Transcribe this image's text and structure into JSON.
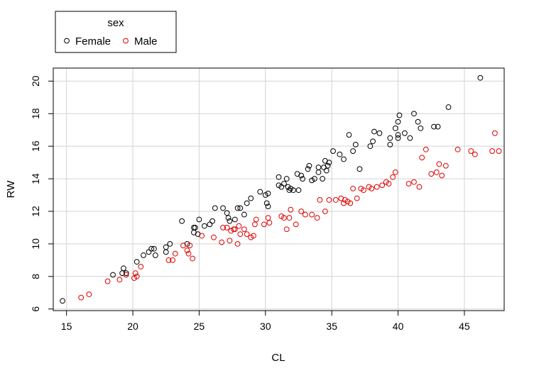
{
  "chart_data": {
    "type": "scatter",
    "xlabel": "CL",
    "ylabel": "RW",
    "xlim": [
      14,
      48
    ],
    "ylim": [
      5.9,
      20.8
    ],
    "grid": true,
    "x_ticks": [
      15,
      20,
      25,
      30,
      35,
      40,
      45
    ],
    "y_ticks": [
      6,
      8,
      10,
      12,
      14,
      16,
      18,
      20
    ],
    "legend": {
      "title": "sex",
      "position": "top-left, outside plot",
      "entries": [
        "Female",
        "Male"
      ]
    },
    "series": [
      {
        "name": "Female",
        "color": "#000000",
        "marker": "open-circle",
        "points": [
          [
            14.7,
            6.5
          ],
          [
            18.5,
            8.1
          ],
          [
            19.2,
            8.2
          ],
          [
            19.3,
            8.5
          ],
          [
            19.5,
            8.2
          ],
          [
            20.3,
            8.9
          ],
          [
            20.8,
            9.3
          ],
          [
            21.2,
            9.5
          ],
          [
            21.4,
            9.7
          ],
          [
            21.6,
            9.7
          ],
          [
            21.7,
            9.3
          ],
          [
            22.5,
            9.5
          ],
          [
            22.5,
            9.8
          ],
          [
            22.8,
            10.0
          ],
          [
            23.7,
            11.4
          ],
          [
            24.1,
            10.0
          ],
          [
            24.6,
            10.7
          ],
          [
            24.6,
            11.0
          ],
          [
            24.7,
            11.0
          ],
          [
            24.9,
            10.6
          ],
          [
            25.0,
            11.5
          ],
          [
            25.4,
            11.1
          ],
          [
            25.8,
            11.2
          ],
          [
            26.0,
            11.4
          ],
          [
            26.2,
            12.2
          ],
          [
            26.8,
            12.2
          ],
          [
            27.1,
            11.9
          ],
          [
            27.2,
            11.6
          ],
          [
            27.3,
            11.4
          ],
          [
            27.7,
            11.5
          ],
          [
            27.9,
            12.2
          ],
          [
            28.1,
            12.2
          ],
          [
            28.4,
            11.8
          ],
          [
            28.6,
            12.5
          ],
          [
            28.9,
            12.8
          ],
          [
            29.6,
            13.2
          ],
          [
            30.0,
            13.0
          ],
          [
            30.1,
            12.5
          ],
          [
            30.2,
            12.3
          ],
          [
            30.2,
            13.1
          ],
          [
            31.0,
            13.6
          ],
          [
            31.0,
            14.1
          ],
          [
            31.2,
            13.5
          ],
          [
            31.4,
            13.7
          ],
          [
            31.6,
            14.0
          ],
          [
            31.7,
            13.5
          ],
          [
            31.8,
            13.3
          ],
          [
            31.9,
            13.4
          ],
          [
            32.1,
            13.3
          ],
          [
            32.4,
            14.3
          ],
          [
            32.5,
            13.3
          ],
          [
            32.7,
            14.2
          ],
          [
            32.8,
            14.0
          ],
          [
            33.2,
            14.6
          ],
          [
            33.3,
            14.8
          ],
          [
            33.5,
            13.9
          ],
          [
            33.7,
            14.0
          ],
          [
            34.0,
            14.4
          ],
          [
            34.0,
            14.7
          ],
          [
            34.3,
            14.0
          ],
          [
            34.4,
            14.7
          ],
          [
            34.5,
            15.1
          ],
          [
            34.6,
            14.5
          ],
          [
            34.7,
            14.8
          ],
          [
            34.8,
            15.0
          ],
          [
            35.1,
            15.7
          ],
          [
            35.6,
            15.5
          ],
          [
            35.9,
            15.2
          ],
          [
            36.3,
            16.7
          ],
          [
            36.6,
            15.7
          ],
          [
            36.8,
            16.1
          ],
          [
            37.1,
            14.6
          ],
          [
            37.9,
            16.0
          ],
          [
            38.1,
            16.3
          ],
          [
            38.2,
            16.9
          ],
          [
            38.6,
            16.8
          ],
          [
            39.4,
            16.1
          ],
          [
            39.4,
            16.5
          ],
          [
            39.8,
            17.1
          ],
          [
            40.0,
            16.5
          ],
          [
            40.0,
            16.7
          ],
          [
            40.0,
            17.5
          ],
          [
            40.1,
            17.9
          ],
          [
            40.5,
            16.8
          ],
          [
            40.9,
            16.5
          ],
          [
            41.2,
            18.0
          ],
          [
            41.5,
            17.5
          ],
          [
            41.7,
            17.1
          ],
          [
            42.7,
            17.2
          ],
          [
            43.0,
            17.2
          ],
          [
            43.8,
            18.4
          ],
          [
            46.2,
            20.2
          ]
        ]
      },
      {
        "name": "Male",
        "color": "#df0000",
        "marker": "open-circle",
        "points": [
          [
            16.1,
            6.7
          ],
          [
            16.7,
            6.9
          ],
          [
            18.1,
            7.7
          ],
          [
            19.0,
            7.8
          ],
          [
            19.5,
            8.1
          ],
          [
            20.1,
            7.9
          ],
          [
            20.2,
            8.2
          ],
          [
            20.3,
            8.0
          ],
          [
            20.6,
            8.6
          ],
          [
            22.7,
            9.0
          ],
          [
            23.0,
            9.0
          ],
          [
            23.2,
            9.4
          ],
          [
            23.8,
            9.9
          ],
          [
            24.1,
            9.6
          ],
          [
            24.2,
            9.4
          ],
          [
            24.3,
            9.9
          ],
          [
            24.5,
            9.1
          ],
          [
            25.2,
            10.5
          ],
          [
            26.1,
            10.4
          ],
          [
            26.7,
            10.1
          ],
          [
            26.8,
            11.0
          ],
          [
            27.1,
            11.0
          ],
          [
            27.3,
            10.2
          ],
          [
            27.4,
            10.8
          ],
          [
            27.6,
            10.9
          ],
          [
            27.7,
            10.9
          ],
          [
            27.9,
            10.0
          ],
          [
            28.0,
            11.1
          ],
          [
            28.1,
            10.6
          ],
          [
            28.4,
            10.9
          ],
          [
            28.6,
            10.6
          ],
          [
            28.9,
            10.4
          ],
          [
            29.1,
            10.5
          ],
          [
            29.2,
            11.2
          ],
          [
            29.3,
            11.5
          ],
          [
            29.9,
            11.2
          ],
          [
            30.2,
            11.6
          ],
          [
            30.3,
            11.3
          ],
          [
            31.2,
            11.7
          ],
          [
            31.4,
            11.6
          ],
          [
            31.6,
            10.9
          ],
          [
            31.8,
            11.6
          ],
          [
            31.9,
            12.1
          ],
          [
            32.3,
            11.2
          ],
          [
            32.7,
            12.0
          ],
          [
            33.0,
            11.8
          ],
          [
            33.5,
            11.8
          ],
          [
            33.9,
            11.6
          ],
          [
            34.1,
            12.7
          ],
          [
            34.5,
            12.0
          ],
          [
            34.8,
            12.7
          ],
          [
            35.3,
            12.7
          ],
          [
            35.7,
            12.8
          ],
          [
            35.9,
            12.5
          ],
          [
            36.0,
            12.7
          ],
          [
            36.2,
            12.6
          ],
          [
            36.4,
            12.5
          ],
          [
            36.6,
            13.4
          ],
          [
            36.9,
            12.8
          ],
          [
            37.2,
            13.4
          ],
          [
            37.4,
            13.3
          ],
          [
            37.8,
            13.5
          ],
          [
            38.0,
            13.4
          ],
          [
            38.4,
            13.5
          ],
          [
            38.8,
            13.6
          ],
          [
            39.1,
            13.8
          ],
          [
            39.3,
            13.7
          ],
          [
            39.6,
            14.1
          ],
          [
            39.8,
            14.4
          ],
          [
            40.8,
            13.7
          ],
          [
            41.2,
            13.8
          ],
          [
            41.6,
            13.5
          ],
          [
            41.8,
            15.3
          ],
          [
            42.1,
            15.8
          ],
          [
            42.5,
            14.3
          ],
          [
            42.9,
            14.4
          ],
          [
            43.1,
            14.9
          ],
          [
            43.3,
            14.2
          ],
          [
            43.6,
            14.8
          ],
          [
            44.5,
            15.8
          ],
          [
            45.5,
            15.7
          ],
          [
            45.8,
            15.5
          ],
          [
            47.1,
            15.7
          ],
          [
            47.3,
            16.8
          ],
          [
            47.6,
            15.7
          ]
        ]
      }
    ]
  }
}
